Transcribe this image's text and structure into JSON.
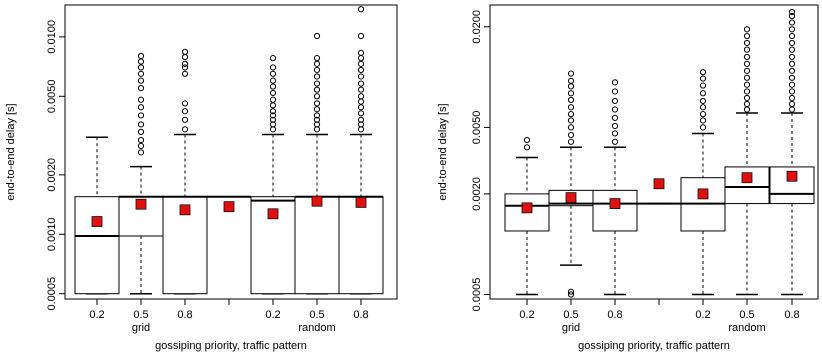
{
  "chart_data": [
    {
      "type": "boxplot",
      "xlabel": "gossiping priority, traffic pattern",
      "ylabel": "end-to-end delay [s]",
      "y_scale": "log",
      "ylim": [
        0.00047,
        0.0145
      ],
      "y_ticks": [
        {
          "v": 0.0005,
          "label": "0.0005"
        },
        {
          "v": 0.001,
          "label": "0.0010"
        },
        {
          "v": 0.002,
          "label": "0.0020"
        },
        {
          "v": 0.005,
          "label": "0.0050"
        },
        {
          "v": 0.01,
          "label": "0.0100"
        }
      ],
      "groups": [
        {
          "label": "grid",
          "under": 1
        },
        {
          "label": "random",
          "under": 5
        }
      ],
      "boxes": [
        {
          "tick": "0.2",
          "whisker_low": 0.0005,
          "q1": 0.0005,
          "median": 0.00098,
          "q3": 0.00155,
          "whisker_high": 0.0031,
          "mean": 0.00116,
          "outliers": []
        },
        {
          "tick": "0.5",
          "whisker_low": 0.0005,
          "q1": 0.00098,
          "median": 0.00155,
          "q3": 0.00155,
          "whisker_high": 0.0022,
          "mean": 0.00142,
          "outliers": [
            0.0026,
            0.0028,
            0.003,
            0.0033,
            0.0036,
            0.004,
            0.0044,
            0.0048,
            0.0055,
            0.006,
            0.0065,
            0.007,
            0.0075,
            0.008
          ]
        },
        {
          "tick": "0.8",
          "whisker_low": 0.0005,
          "q1": 0.0005,
          "median": 0.00155,
          "q3": 0.00155,
          "whisker_high": 0.0032,
          "mean": 0.00133,
          "outliers": [
            0.0034,
            0.0038,
            0.0042,
            0.0046,
            0.0065,
            0.007,
            0.0073,
            0.0079,
            0.0084
          ]
        },
        {
          "tick": "",
          "whisker_low": 0.00155,
          "q1": 0.00155,
          "median": 0.00155,
          "q3": 0.00155,
          "whisker_high": 0.00155,
          "mean": 0.00138,
          "outliers": []
        },
        {
          "tick": "0.2",
          "whisker_low": 0.0005,
          "q1": 0.0005,
          "median": 0.00148,
          "q3": 0.00155,
          "whisker_high": 0.0032,
          "mean": 0.00127,
          "outliers": [
            0.0034,
            0.0036,
            0.0038,
            0.004,
            0.0042,
            0.0045,
            0.0048,
            0.0052,
            0.0056,
            0.006,
            0.0065,
            0.007,
            0.0078
          ]
        },
        {
          "tick": "0.5",
          "whisker_low": 0.0005,
          "q1": 0.0005,
          "median": 0.00155,
          "q3": 0.00155,
          "whisker_high": 0.0032,
          "mean": 0.00147,
          "outliers": [
            0.0034,
            0.0036,
            0.0038,
            0.004,
            0.0043,
            0.0046,
            0.005,
            0.0054,
            0.0058,
            0.0063,
            0.0068,
            0.0073,
            0.0078,
            0.0101
          ]
        },
        {
          "tick": "0.8",
          "whisker_low": 0.0005,
          "q1": 0.0005,
          "median": 0.00155,
          "q3": 0.00155,
          "whisker_high": 0.0032,
          "mean": 0.00145,
          "outliers": [
            0.0034,
            0.0036,
            0.0038,
            0.0041,
            0.0044,
            0.0047,
            0.005,
            0.0054,
            0.0058,
            0.0063,
            0.0068,
            0.0073,
            0.0078,
            0.0083,
            0.0101,
            0.0138
          ]
        }
      ]
    },
    {
      "type": "boxplot",
      "xlabel": "gossiping priority, traffic pattern",
      "ylabel": "end-to-end delay [s]",
      "y_scale": "log",
      "ylim": [
        0.00047,
        0.027
      ],
      "y_ticks": [
        {
          "v": 0.0005,
          "label": "0.0005"
        },
        {
          "v": 0.002,
          "label": "0.0020"
        },
        {
          "v": 0.005,
          "label": "0.0050"
        },
        {
          "v": 0.02,
          "label": "0.0200"
        }
      ],
      "groups": [
        {
          "label": "grid",
          "under": 1
        },
        {
          "label": "random",
          "under": 5
        }
      ],
      "boxes": [
        {
          "tick": "0.2",
          "whisker_low": 0.0005,
          "q1": 0.0012,
          "median": 0.0017,
          "q3": 0.002,
          "whisker_high": 0.0033,
          "mean": 0.00165,
          "outliers": [
            0.0038,
            0.0042
          ]
        },
        {
          "tick": "0.5",
          "whisker_low": 0.00075,
          "q1": 0.0017,
          "median": 0.00175,
          "q3": 0.0021,
          "whisker_high": 0.0038,
          "mean": 0.0019,
          "outliers": [
            0.0005,
            0.00052,
            0.0041,
            0.0045,
            0.005,
            0.0055,
            0.006,
            0.0066,
            0.0073,
            0.008,
            0.0088,
            0.0095,
            0.0105
          ]
        },
        {
          "tick": "0.8",
          "whisker_low": 0.0005,
          "q1": 0.0012,
          "median": 0.00175,
          "q3": 0.0021,
          "whisker_high": 0.0038,
          "mean": 0.00175,
          "outliers": [
            0.0041,
            0.0046,
            0.0051,
            0.0057,
            0.0064,
            0.0072,
            0.0082,
            0.0093
          ]
        },
        {
          "tick": "",
          "whisker_low": 0.00175,
          "q1": 0.00175,
          "median": 0.00175,
          "q3": 0.00175,
          "whisker_high": 0.00175,
          "mean": 0.0023,
          "outliers": []
        },
        {
          "tick": "0.2",
          "whisker_low": 0.0005,
          "q1": 0.0012,
          "median": 0.00175,
          "q3": 0.0025,
          "whisker_high": 0.0046,
          "mean": 0.002,
          "outliers": [
            0.005,
            0.0055,
            0.006,
            0.0066,
            0.0072,
            0.008,
            0.0089,
            0.0098,
            0.0107
          ]
        },
        {
          "tick": "0.5",
          "whisker_low": 0.0005,
          "q1": 0.00175,
          "median": 0.0022,
          "q3": 0.0029,
          "whisker_high": 0.0061,
          "mean": 0.0025,
          "outliers": [
            0.0064,
            0.0069,
            0.0075,
            0.0082,
            0.009,
            0.0099,
            0.0109,
            0.012,
            0.0132,
            0.0146,
            0.016,
            0.0176,
            0.0193
          ]
        },
        {
          "tick": "0.8",
          "whisker_low": 0.0005,
          "q1": 0.00175,
          "median": 0.002,
          "q3": 0.0029,
          "whisker_high": 0.0061,
          "mean": 0.00255,
          "outliers": [
            0.0064,
            0.0069,
            0.0075,
            0.0082,
            0.009,
            0.0099,
            0.0109,
            0.012,
            0.0132,
            0.0146,
            0.016,
            0.0176,
            0.0193,
            0.0212,
            0.0232,
            0.0245
          ]
        }
      ]
    }
  ]
}
